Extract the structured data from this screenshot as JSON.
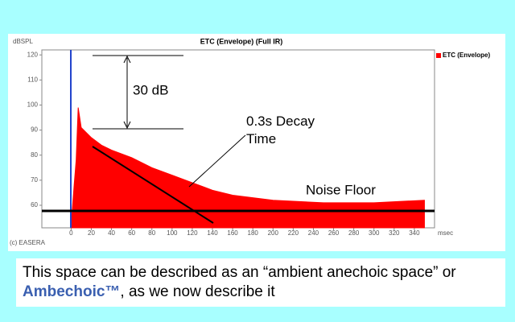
{
  "chart_data": {
    "type": "area",
    "title": "ETC (Envelope) (Full IR)",
    "y_label": "dBSPL",
    "x_label": "msec",
    "credit": "(c) EASERA",
    "x": [
      0,
      3,
      5,
      7,
      10,
      15,
      20,
      30,
      40,
      60,
      80,
      100,
      120,
      140,
      160,
      200,
      250,
      300,
      350
    ],
    "series": [
      {
        "name": "ETC (Envelope)",
        "color": "#ff0000",
        "values": [
          52,
          68,
          78,
          99,
          91,
          89,
          87,
          84,
          82,
          79,
          75,
          72,
          69,
          66,
          64,
          62,
          61,
          61,
          62
        ]
      }
    ],
    "xlim": [
      -29,
      360
    ],
    "xticks": [
      0,
      20,
      40,
      60,
      80,
      100,
      120,
      140,
      160,
      180,
      200,
      220,
      240,
      260,
      280,
      300,
      320,
      340
    ],
    "ylim": [
      51,
      122
    ],
    "yticks": [
      60,
      70,
      80,
      90,
      100,
      110,
      120
    ],
    "legend": "top-right",
    "annotations": [
      "30 dB",
      "0.3s Decay Time",
      "Noise Floor"
    ]
  },
  "caption": {
    "before": "This space can be described as an “ambient anechoic space” or ",
    "highlight": "Ambechoic™",
    "after": ", as we now describe it"
  }
}
